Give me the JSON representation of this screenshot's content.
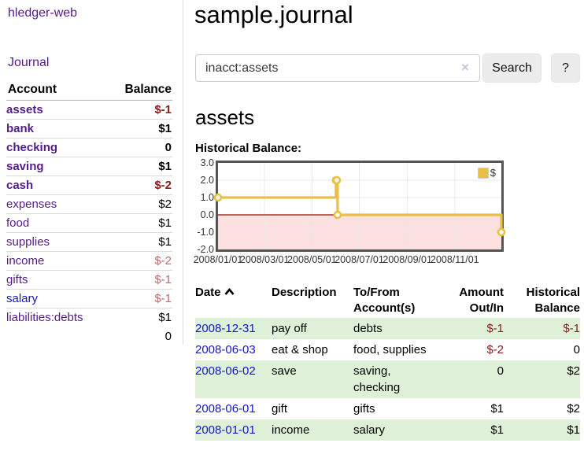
{
  "sidebar": {
    "brand": "hledger-web",
    "journal_link": "Journal",
    "accounts": {
      "headers": {
        "account": "Account",
        "balance": "Balance"
      },
      "rows": [
        {
          "name": "assets",
          "balance": "$-1",
          "depth": 1,
          "bold": true,
          "balance_class": "neg"
        },
        {
          "name": "bank",
          "balance": "$1",
          "depth": 2,
          "bold": true,
          "balance_class": ""
        },
        {
          "name": "checking",
          "balance": "0",
          "depth": 3,
          "bold": true,
          "balance_class": ""
        },
        {
          "name": "saving",
          "balance": "$1",
          "depth": 3,
          "bold": true,
          "balance_class": ""
        },
        {
          "name": "cash",
          "balance": "$-2",
          "depth": 2,
          "bold": true,
          "balance_class": "neg"
        },
        {
          "name": "expenses",
          "balance": "$2",
          "depth": 1,
          "bold": false,
          "balance_class": ""
        },
        {
          "name": "food",
          "balance": "$1",
          "depth": 2,
          "bold": false,
          "balance_class": ""
        },
        {
          "name": "supplies",
          "balance": "$1",
          "depth": 2,
          "bold": false,
          "balance_class": ""
        },
        {
          "name": "income",
          "balance": "$-2",
          "depth": 1,
          "bold": false,
          "balance_class": "neg-muted"
        },
        {
          "name": "gifts",
          "balance": "$-1",
          "depth": 2,
          "bold": false,
          "balance_class": "neg-muted"
        },
        {
          "name": "salary",
          "balance": "$-1",
          "depth": 2,
          "bold": false,
          "balance_class": "neg-muted",
          "unvisited": true
        },
        {
          "name": "liabilities:debts",
          "balance": "$1",
          "depth": 1,
          "bold": false,
          "balance_class": ""
        }
      ],
      "total": "0"
    }
  },
  "main": {
    "title": "sample.journal",
    "search": {
      "value": "inacct:assets",
      "clear_icon": "×",
      "button_label": "Search",
      "help_label": "?"
    },
    "account_heading": "assets",
    "chart_heading": "Historical Balance:"
  },
  "chart_data": {
    "type": "line",
    "interpolation": "step",
    "title": "Historical Balance",
    "series": [
      {
        "name": "$",
        "color": "#e9c044",
        "points": [
          {
            "x": "2008/01/01",
            "y": 1
          },
          {
            "x": "2008/06/01",
            "y": 2
          },
          {
            "x": "2008/06/02",
            "y": 2
          },
          {
            "x": "2008/06/03",
            "y": 0
          },
          {
            "x": "2008/12/31",
            "y": -1
          }
        ]
      }
    ],
    "x_range": [
      "2008/01/01",
      "2008/12/31"
    ],
    "x_ticks": [
      "2008/01/01",
      "2008/03/01",
      "2008/05/01",
      "2008/07/01",
      "2008/09/01",
      "2008/11/01"
    ],
    "y_ticks": [
      "3.0",
      "2.0",
      "1.0",
      "0.0",
      "-1.0",
      "-2.0"
    ],
    "ylim": [
      -2,
      3
    ],
    "grid": true,
    "legend": {
      "label": "$",
      "position": "top-right"
    },
    "negative_region_color": "#fcdfdf",
    "zero_line_color": "#a40000",
    "gridline_color": "#e8e8e8",
    "border_color": "#545454"
  },
  "register": {
    "headers": [
      "Date",
      "Description",
      "To/From Account(s)",
      "Amount Out/In",
      "Historical Balance"
    ],
    "sort": {
      "column": "Date",
      "direction": "asc"
    },
    "rows": [
      {
        "date": "2008-12-31",
        "description": "pay off",
        "accounts": "debts",
        "amount": "$-1",
        "amount_neg": true,
        "balance": "$-1",
        "balance_neg": true
      },
      {
        "date": "2008-06-03",
        "description": "eat & shop",
        "accounts": "food, supplies",
        "amount": "$-2",
        "amount_neg": true,
        "balance": "0",
        "balance_neg": false
      },
      {
        "date": "2008-06-02",
        "description": "save",
        "accounts": "saving, checking",
        "amount": "0",
        "amount_neg": false,
        "balance": "$2",
        "balance_neg": false
      },
      {
        "date": "2008-06-01",
        "description": "gift",
        "accounts": "gifts",
        "amount": "$1",
        "amount_neg": false,
        "balance": "$2",
        "balance_neg": false
      },
      {
        "date": "2008-01-01",
        "description": "income",
        "accounts": "salary",
        "amount": "$1",
        "amount_neg": false,
        "balance": "$1",
        "balance_neg": false
      }
    ]
  }
}
